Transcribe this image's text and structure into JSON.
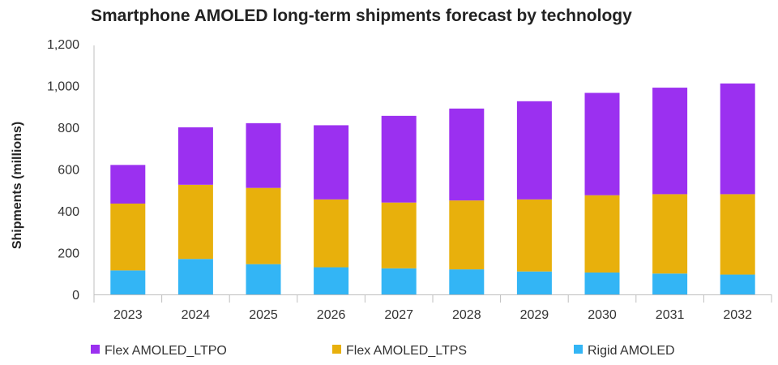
{
  "chart_data": {
    "type": "bar",
    "stacked": true,
    "title": "Smartphone AMOLED long-term shipments forecast by technology",
    "xlabel": "",
    "ylabel": "Shipments (millions)",
    "ylim": [
      0,
      1200
    ],
    "yticks": [
      0,
      200,
      400,
      600,
      800,
      1000,
      1200
    ],
    "ytick_labels": [
      "0",
      "200",
      "400",
      "600",
      "800",
      "1,000",
      "1,200"
    ],
    "grid": false,
    "categories": [
      "2023",
      "2024",
      "2025",
      "2026",
      "2027",
      "2028",
      "2029",
      "2030",
      "2031",
      "2032"
    ],
    "series": [
      {
        "name": "Rigid AMOLED",
        "color": "#33b5f5",
        "values": [
          115,
          170,
          145,
          130,
          125,
          120,
          110,
          105,
          100,
          95
        ]
      },
      {
        "name": "Flex AMOLED_LTPS",
        "color": "#e8b00c",
        "values": [
          320,
          355,
          365,
          325,
          315,
          330,
          345,
          370,
          380,
          385
        ]
      },
      {
        "name": "Flex AMOLED_LTPO",
        "color": "#9b30f0",
        "values": [
          185,
          275,
          310,
          355,
          415,
          440,
          470,
          490,
          510,
          530
        ]
      }
    ],
    "legend": {
      "placement": "bottom",
      "order": [
        "Flex AMOLED_LTPO",
        "Flex AMOLED_LTPS",
        "Rigid AMOLED"
      ]
    }
  }
}
